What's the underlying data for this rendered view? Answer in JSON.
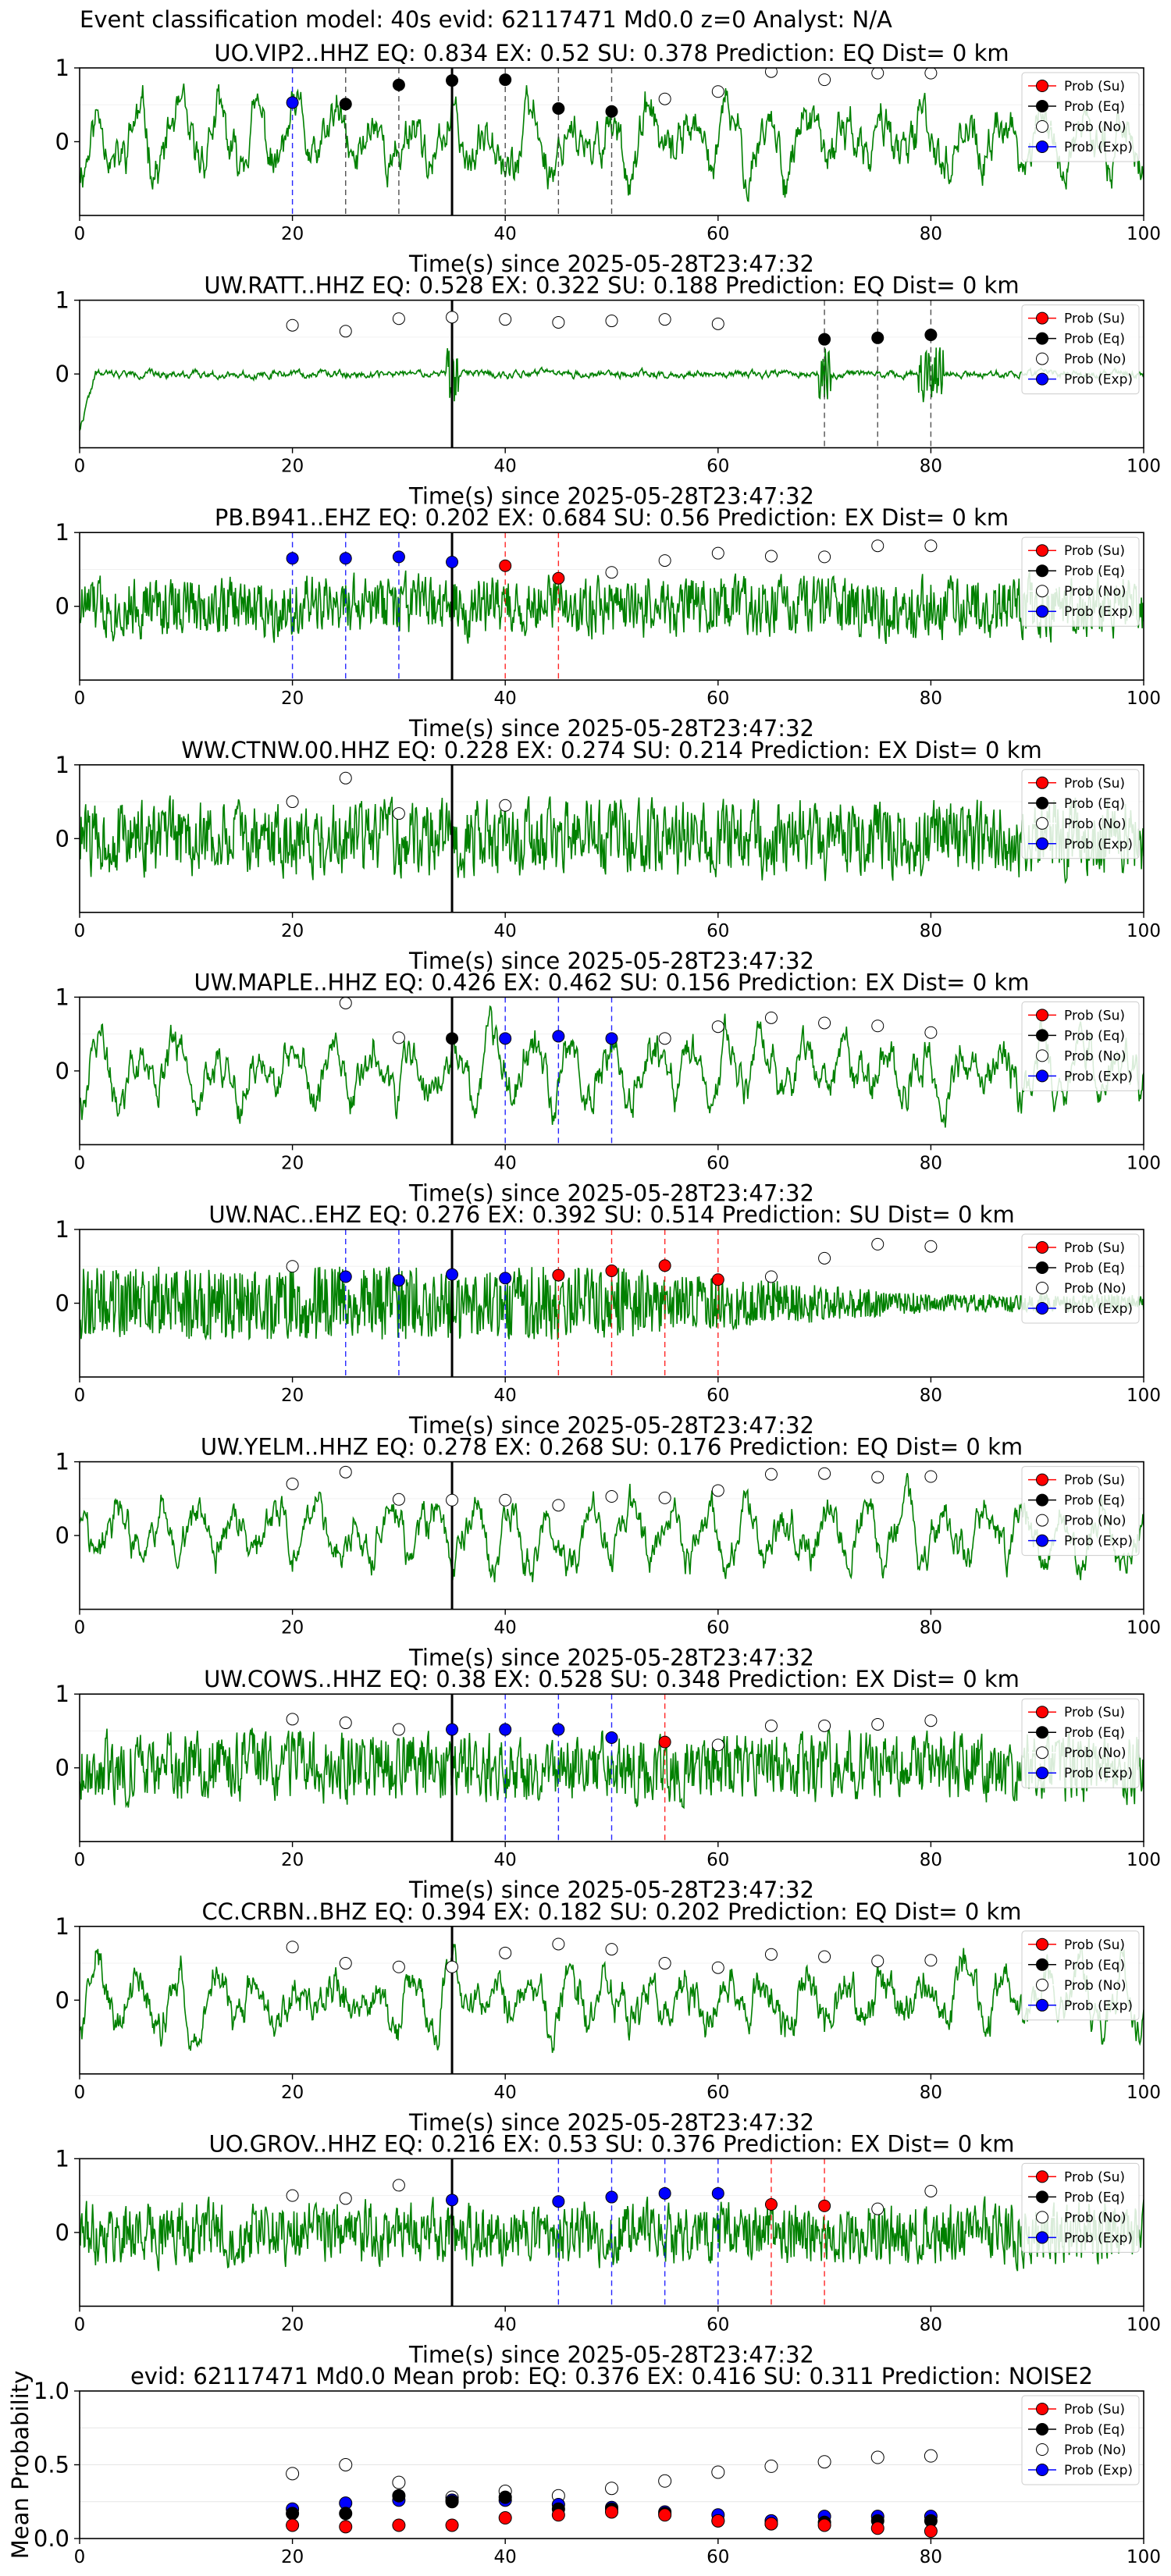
{
  "figure": {
    "suptitle": "Event classification model: 40s evid: 62117471 Md0.0 z=0 Analyst: N/A"
  },
  "legend_labels": [
    "Prob (Su)",
    "Prob (Eq)",
    "Prob (No)",
    "Prob (Exp)"
  ],
  "colors": {
    "waveform": "#008000",
    "su": "#ff0000",
    "eq": "#000000",
    "no": "#ffffff",
    "exp": "#0000ff",
    "pick_line": "#000000"
  },
  "chart_data": [
    {
      "type": "line",
      "title": "UO.VIP2..HHZ   EQ: 0.834  EX: 0.52  SU: 0.378   Prediction: EQ    Dist= 0 km",
      "xlabel": "Time(s) since 2025-05-28T23:47:32",
      "xlim": [
        0,
        100
      ],
      "ylim": [
        -1,
        1
      ],
      "xticks": [
        0,
        20,
        40,
        60,
        80,
        100
      ],
      "yticks": [
        0,
        1
      ],
      "pick_time": 35,
      "waveform": {
        "style": "smooth",
        "amp": 0.55,
        "seed": 11
      },
      "points": [
        {
          "x": 20,
          "y": 0.53,
          "cls": "exp"
        },
        {
          "x": 25,
          "y": 0.51,
          "cls": "eq"
        },
        {
          "x": 30,
          "y": 0.77,
          "cls": "eq"
        },
        {
          "x": 35,
          "y": 0.83,
          "cls": "eq"
        },
        {
          "x": 40,
          "y": 0.84,
          "cls": "eq"
        },
        {
          "x": 45,
          "y": 0.45,
          "cls": "eq"
        },
        {
          "x": 50,
          "y": 0.41,
          "cls": "eq"
        },
        {
          "x": 55,
          "y": 0.58,
          "cls": "no"
        },
        {
          "x": 60,
          "y": 0.68,
          "cls": "no"
        },
        {
          "x": 65,
          "y": 0.95,
          "cls": "no"
        },
        {
          "x": 70,
          "y": 0.84,
          "cls": "no"
        },
        {
          "x": 75,
          "y": 0.93,
          "cls": "no"
        },
        {
          "x": 80,
          "y": 0.93,
          "cls": "no"
        }
      ]
    },
    {
      "type": "line",
      "title": "UW.RATT..HHZ   EQ: 0.528  EX: 0.322  SU: 0.188   Prediction: EQ    Dist= 0 km",
      "xlabel": "Time(s) since 2025-05-28T23:47:32",
      "xlim": [
        0,
        100
      ],
      "ylim": [
        -1,
        1
      ],
      "xticks": [
        0,
        20,
        40,
        60,
        80,
        100
      ],
      "yticks": [
        0,
        1
      ],
      "pick_time": 35,
      "waveform": {
        "style": "quiet",
        "amp": 0.12,
        "seed": 22
      },
      "points": [
        {
          "x": 20,
          "y": 0.66,
          "cls": "no"
        },
        {
          "x": 25,
          "y": 0.58,
          "cls": "no"
        },
        {
          "x": 30,
          "y": 0.75,
          "cls": "no"
        },
        {
          "x": 35,
          "y": 0.77,
          "cls": "no"
        },
        {
          "x": 40,
          "y": 0.74,
          "cls": "no"
        },
        {
          "x": 45,
          "y": 0.7,
          "cls": "no"
        },
        {
          "x": 50,
          "y": 0.72,
          "cls": "no"
        },
        {
          "x": 55,
          "y": 0.74,
          "cls": "no"
        },
        {
          "x": 60,
          "y": 0.68,
          "cls": "no"
        },
        {
          "x": 70,
          "y": 0.47,
          "cls": "eq"
        },
        {
          "x": 75,
          "y": 0.49,
          "cls": "eq"
        },
        {
          "x": 80,
          "y": 0.53,
          "cls": "eq"
        }
      ]
    },
    {
      "type": "line",
      "title": "PB.B941..EHZ   EQ: 0.202  EX: 0.684  SU: 0.56   Prediction: EX    Dist= 0 km",
      "xlabel": "Time(s) since 2025-05-28T23:47:32",
      "xlim": [
        0,
        100
      ],
      "ylim": [
        -1,
        1
      ],
      "xticks": [
        0,
        20,
        40,
        60,
        80,
        100
      ],
      "yticks": [
        0,
        1
      ],
      "pick_time": 35,
      "waveform": {
        "style": "noisy",
        "amp": 0.45,
        "seed": 33
      },
      "points": [
        {
          "x": 20,
          "y": 0.65,
          "cls": "exp"
        },
        {
          "x": 25,
          "y": 0.65,
          "cls": "exp"
        },
        {
          "x": 30,
          "y": 0.67,
          "cls": "exp"
        },
        {
          "x": 35,
          "y": 0.6,
          "cls": "exp"
        },
        {
          "x": 40,
          "y": 0.55,
          "cls": "su"
        },
        {
          "x": 45,
          "y": 0.38,
          "cls": "su"
        },
        {
          "x": 50,
          "y": 0.46,
          "cls": "no"
        },
        {
          "x": 55,
          "y": 0.62,
          "cls": "no"
        },
        {
          "x": 60,
          "y": 0.72,
          "cls": "no"
        },
        {
          "x": 65,
          "y": 0.68,
          "cls": "no"
        },
        {
          "x": 70,
          "y": 0.67,
          "cls": "no"
        },
        {
          "x": 75,
          "y": 0.82,
          "cls": "no"
        },
        {
          "x": 80,
          "y": 0.82,
          "cls": "no"
        }
      ]
    },
    {
      "type": "line",
      "title": "WW.CTNW.00.HHZ   EQ: 0.228  EX: 0.274  SU: 0.214   Prediction: EX    Dist= 0 km",
      "xlabel": "Time(s) since 2025-05-28T23:47:32",
      "xlim": [
        0,
        100
      ],
      "ylim": [
        -1,
        1
      ],
      "xticks": [
        0,
        20,
        40,
        60,
        80,
        100
      ],
      "yticks": [
        0,
        1
      ],
      "pick_time": 35,
      "waveform": {
        "style": "noisy",
        "amp": 0.55,
        "seed": 44
      },
      "points": [
        {
          "x": 20,
          "y": 0.5,
          "cls": "no"
        },
        {
          "x": 25,
          "y": 0.82,
          "cls": "no"
        },
        {
          "x": 30,
          "y": 0.34,
          "cls": "no"
        },
        {
          "x": 40,
          "y": 0.45,
          "cls": "no"
        }
      ]
    },
    {
      "type": "line",
      "title": "UW.MAPLE..HHZ   EQ: 0.426  EX: 0.462  SU: 0.156   Prediction: EX    Dist= 0 km",
      "xlabel": "Time(s) since 2025-05-28T23:47:32",
      "xlim": [
        0,
        100
      ],
      "ylim": [
        -1,
        1
      ],
      "xticks": [
        0,
        20,
        40,
        60,
        80,
        100
      ],
      "yticks": [
        0,
        1
      ],
      "pick_time": 35,
      "waveform": {
        "style": "smooth",
        "amp": 0.5,
        "seed": 55
      },
      "points": [
        {
          "x": 25,
          "y": 0.92,
          "cls": "no"
        },
        {
          "x": 30,
          "y": 0.45,
          "cls": "no"
        },
        {
          "x": 35,
          "y": 0.44,
          "cls": "eq"
        },
        {
          "x": 40,
          "y": 0.44,
          "cls": "exp"
        },
        {
          "x": 45,
          "y": 0.47,
          "cls": "exp"
        },
        {
          "x": 50,
          "y": 0.44,
          "cls": "exp"
        },
        {
          "x": 55,
          "y": 0.44,
          "cls": "no"
        },
        {
          "x": 60,
          "y": 0.6,
          "cls": "no"
        },
        {
          "x": 65,
          "y": 0.72,
          "cls": "no"
        },
        {
          "x": 70,
          "y": 0.65,
          "cls": "no"
        },
        {
          "x": 75,
          "y": 0.61,
          "cls": "no"
        },
        {
          "x": 80,
          "y": 0.52,
          "cls": "no"
        }
      ]
    },
    {
      "type": "line",
      "title": "UW.NAC..EHZ   EQ: 0.276  EX: 0.392  SU: 0.514   Prediction: SU    Dist= 0 km",
      "xlabel": "Time(s) since 2025-05-28T23:47:32",
      "xlim": [
        0,
        100
      ],
      "ylim": [
        -1,
        1
      ],
      "xticks": [
        0,
        20,
        40,
        60,
        80,
        100
      ],
      "yticks": [
        0,
        1
      ],
      "pick_time": 35,
      "waveform": {
        "style": "decay",
        "amp": 0.45,
        "seed": 66
      },
      "points": [
        {
          "x": 20,
          "y": 0.5,
          "cls": "no"
        },
        {
          "x": 25,
          "y": 0.36,
          "cls": "exp"
        },
        {
          "x": 30,
          "y": 0.31,
          "cls": "exp"
        },
        {
          "x": 35,
          "y": 0.39,
          "cls": "exp"
        },
        {
          "x": 40,
          "y": 0.34,
          "cls": "exp"
        },
        {
          "x": 45,
          "y": 0.38,
          "cls": "su"
        },
        {
          "x": 50,
          "y": 0.44,
          "cls": "su"
        },
        {
          "x": 55,
          "y": 0.51,
          "cls": "su"
        },
        {
          "x": 60,
          "y": 0.32,
          "cls": "su"
        },
        {
          "x": 65,
          "y": 0.36,
          "cls": "no"
        },
        {
          "x": 70,
          "y": 0.61,
          "cls": "no"
        },
        {
          "x": 75,
          "y": 0.8,
          "cls": "no"
        },
        {
          "x": 80,
          "y": 0.77,
          "cls": "no"
        }
      ]
    },
    {
      "type": "line",
      "title": "UW.YELM..HHZ   EQ: 0.278  EX: 0.268  SU: 0.176   Prediction: EQ    Dist= 0 km",
      "xlabel": "Time(s) since 2025-05-28T23:47:32",
      "xlim": [
        0,
        100
      ],
      "ylim": [
        -1,
        1
      ],
      "xticks": [
        0,
        20,
        40,
        60,
        80,
        100
      ],
      "yticks": [
        0,
        1
      ],
      "pick_time": 35,
      "waveform": {
        "style": "smooth",
        "amp": 0.45,
        "seed": 77
      },
      "points": [
        {
          "x": 20,
          "y": 0.7,
          "cls": "no"
        },
        {
          "x": 25,
          "y": 0.86,
          "cls": "no"
        },
        {
          "x": 30,
          "y": 0.49,
          "cls": "no"
        },
        {
          "x": 35,
          "y": 0.48,
          "cls": "no"
        },
        {
          "x": 40,
          "y": 0.48,
          "cls": "no"
        },
        {
          "x": 45,
          "y": 0.41,
          "cls": "no"
        },
        {
          "x": 50,
          "y": 0.53,
          "cls": "no"
        },
        {
          "x": 55,
          "y": 0.51,
          "cls": "no"
        },
        {
          "x": 60,
          "y": 0.61,
          "cls": "no"
        },
        {
          "x": 65,
          "y": 0.83,
          "cls": "no"
        },
        {
          "x": 70,
          "y": 0.84,
          "cls": "no"
        },
        {
          "x": 75,
          "y": 0.79,
          "cls": "no"
        },
        {
          "x": 80,
          "y": 0.8,
          "cls": "no"
        }
      ]
    },
    {
      "type": "line",
      "title": "UW.COWS..HHZ   EQ: 0.38  EX: 0.528  SU: 0.348   Prediction: EX    Dist= 0 km",
      "xlabel": "Time(s) since 2025-05-28T23:47:32",
      "xlim": [
        0,
        100
      ],
      "ylim": [
        -1,
        1
      ],
      "xticks": [
        0,
        20,
        40,
        60,
        80,
        100
      ],
      "yticks": [
        0,
        1
      ],
      "pick_time": 35,
      "waveform": {
        "style": "noisy",
        "amp": 0.5,
        "seed": 88
      },
      "points": [
        {
          "x": 20,
          "y": 0.66,
          "cls": "no"
        },
        {
          "x": 25,
          "y": 0.61,
          "cls": "no"
        },
        {
          "x": 30,
          "y": 0.52,
          "cls": "no"
        },
        {
          "x": 35,
          "y": 0.52,
          "cls": "exp"
        },
        {
          "x": 40,
          "y": 0.52,
          "cls": "exp"
        },
        {
          "x": 45,
          "y": 0.52,
          "cls": "exp"
        },
        {
          "x": 50,
          "y": 0.41,
          "cls": "exp"
        },
        {
          "x": 55,
          "y": 0.35,
          "cls": "su"
        },
        {
          "x": 60,
          "y": 0.31,
          "cls": "no"
        },
        {
          "x": 65,
          "y": 0.57,
          "cls": "no"
        },
        {
          "x": 70,
          "y": 0.57,
          "cls": "no"
        },
        {
          "x": 75,
          "y": 0.59,
          "cls": "no"
        },
        {
          "x": 80,
          "y": 0.64,
          "cls": "no"
        }
      ]
    },
    {
      "type": "line",
      "title": "CC.CRBN..BHZ   EQ: 0.394  EX: 0.182  SU: 0.202   Prediction: EQ    Dist= 0 km",
      "xlabel": "Time(s) since 2025-05-28T23:47:32",
      "xlim": [
        0,
        100
      ],
      "ylim": [
        -1,
        1
      ],
      "xticks": [
        0,
        20,
        40,
        60,
        80,
        100
      ],
      "yticks": [
        0,
        1
      ],
      "pick_time": 35,
      "waveform": {
        "style": "smooth",
        "amp": 0.5,
        "seed": 99
      },
      "points": [
        {
          "x": 20,
          "y": 0.72,
          "cls": "no"
        },
        {
          "x": 25,
          "y": 0.5,
          "cls": "no"
        },
        {
          "x": 30,
          "y": 0.45,
          "cls": "no"
        },
        {
          "x": 35,
          "y": 0.45,
          "cls": "no"
        },
        {
          "x": 40,
          "y": 0.64,
          "cls": "no"
        },
        {
          "x": 45,
          "y": 0.76,
          "cls": "no"
        },
        {
          "x": 50,
          "y": 0.69,
          "cls": "no"
        },
        {
          "x": 55,
          "y": 0.5,
          "cls": "no"
        },
        {
          "x": 60,
          "y": 0.44,
          "cls": "no"
        },
        {
          "x": 65,
          "y": 0.62,
          "cls": "no"
        },
        {
          "x": 70,
          "y": 0.59,
          "cls": "no"
        },
        {
          "x": 75,
          "y": 0.53,
          "cls": "no"
        },
        {
          "x": 80,
          "y": 0.54,
          "cls": "no"
        }
      ]
    },
    {
      "type": "line",
      "title": "UO.GROV..HHZ   EQ: 0.216  EX: 0.53  SU: 0.376   Prediction: EX    Dist= 0 km",
      "xlabel": "Time(s) since 2025-05-28T23:47:32",
      "xlim": [
        0,
        100
      ],
      "ylim": [
        -1,
        1
      ],
      "xticks": [
        0,
        20,
        40,
        60,
        80,
        100
      ],
      "yticks": [
        0,
        1
      ],
      "pick_time": 35,
      "waveform": {
        "style": "noisy",
        "amp": 0.45,
        "seed": 111
      },
      "points": [
        {
          "x": 20,
          "y": 0.5,
          "cls": "no"
        },
        {
          "x": 25,
          "y": 0.46,
          "cls": "no"
        },
        {
          "x": 30,
          "y": 0.64,
          "cls": "no"
        },
        {
          "x": 35,
          "y": 0.44,
          "cls": "exp"
        },
        {
          "x": 45,
          "y": 0.42,
          "cls": "exp"
        },
        {
          "x": 50,
          "y": 0.48,
          "cls": "exp"
        },
        {
          "x": 55,
          "y": 0.53,
          "cls": "exp"
        },
        {
          "x": 60,
          "y": 0.53,
          "cls": "exp"
        },
        {
          "x": 65,
          "y": 0.38,
          "cls": "su"
        },
        {
          "x": 70,
          "y": 0.36,
          "cls": "su"
        },
        {
          "x": 75,
          "y": 0.32,
          "cls": "no"
        },
        {
          "x": 80,
          "y": 0.56,
          "cls": "no"
        }
      ]
    },
    {
      "type": "scatter",
      "title": "evid: 62117471  Md0.0   Mean prob:   EQ: 0.376  EX: 0.416  SU: 0.311   Prediction: NOISE2",
      "xlabel": "",
      "ylabel": "Mean Probability",
      "xlim": [
        0,
        100
      ],
      "ylim": [
        0,
        1
      ],
      "xticks": [
        0,
        20,
        40,
        60,
        80,
        100
      ],
      "yticks": [
        0.0,
        0.5,
        1.0
      ],
      "ytick_labels": [
        "0.0",
        "0.5",
        "1.0"
      ],
      "grid": true,
      "series": [
        {
          "name": "Prob (No)",
          "cls": "no",
          "x": [
            20,
            25,
            30,
            35,
            40,
            45,
            50,
            55,
            60,
            65,
            70,
            75,
            80
          ],
          "values": [
            0.44,
            0.5,
            0.38,
            0.28,
            0.32,
            0.29,
            0.34,
            0.39,
            0.45,
            0.49,
            0.52,
            0.55,
            0.56
          ]
        },
        {
          "name": "Prob (Exp)",
          "cls": "exp",
          "x": [
            20,
            25,
            30,
            35,
            40,
            45,
            50,
            55,
            60,
            65,
            70,
            75,
            80
          ],
          "values": [
            0.2,
            0.24,
            0.26,
            0.26,
            0.26,
            0.23,
            0.21,
            0.18,
            0.16,
            0.12,
            0.15,
            0.15,
            0.15
          ]
        },
        {
          "name": "Prob (Eq)",
          "cls": "eq",
          "x": [
            20,
            25,
            30,
            35,
            40,
            45,
            50,
            55,
            60,
            65,
            70,
            75,
            80
          ],
          "values": [
            0.17,
            0.17,
            0.29,
            0.25,
            0.28,
            0.2,
            0.2,
            0.17,
            0.12,
            0.1,
            0.11,
            0.12,
            0.12
          ]
        },
        {
          "name": "Prob (Su)",
          "cls": "su",
          "x": [
            20,
            25,
            30,
            35,
            40,
            45,
            50,
            55,
            60,
            65,
            70,
            75,
            80
          ],
          "values": [
            0.09,
            0.08,
            0.09,
            0.09,
            0.14,
            0.16,
            0.18,
            0.16,
            0.12,
            0.1,
            0.09,
            0.07,
            0.05
          ]
        }
      ]
    }
  ]
}
